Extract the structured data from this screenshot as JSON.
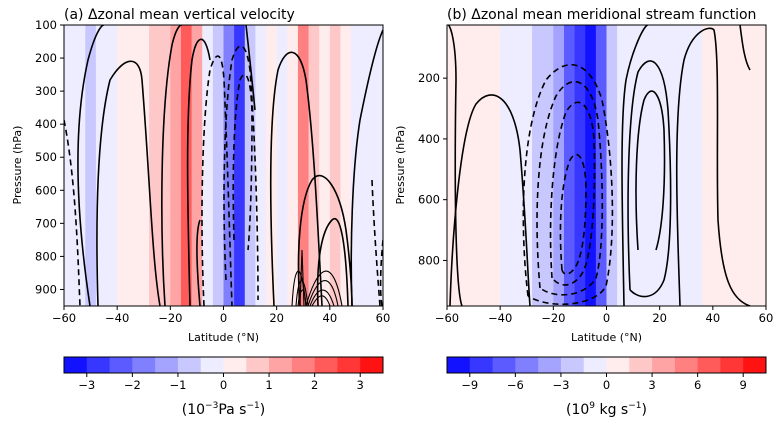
{
  "chart_data": [
    {
      "type": "heatmap",
      "title": "(a) Δzonal mean vertical velocity",
      "xlabel": "Latitude (°N)",
      "ylabel": "Pressure (hPa)",
      "xlim": [
        -60,
        60
      ],
      "ylim": [
        100,
        950
      ],
      "y_inverted": true,
      "xticks": [
        -60,
        -40,
        -20,
        0,
        20,
        40,
        60
      ],
      "yticks": [
        100,
        200,
        300,
        400,
        500,
        600,
        700,
        800,
        900
      ],
      "bands": [
        {
          "lat": -58,
          "value": -0.1
        },
        {
          "lat": -54,
          "value": -0.5
        },
        {
          "lat": -50,
          "value": -0.7
        },
        {
          "lat": -46,
          "value": -0.5
        },
        {
          "lat": -42,
          "value": -0.2
        },
        {
          "lat": -38,
          "value": 0.1
        },
        {
          "lat": -34,
          "value": 0.2
        },
        {
          "lat": -30,
          "value": 0.3
        },
        {
          "lat": -26,
          "value": 0.6
        },
        {
          "lat": -22,
          "value": 0.9
        },
        {
          "lat": -18,
          "value": 1.4
        },
        {
          "lat": -14,
          "value": 2.4
        },
        {
          "lat": -10,
          "value": 1.0
        },
        {
          "lat": -6,
          "value": -0.4
        },
        {
          "lat": -2,
          "value": -0.8
        },
        {
          "lat": 2,
          "value": -1.8
        },
        {
          "lat": 6,
          "value": -2.6
        },
        {
          "lat": 10,
          "value": -0.8
        },
        {
          "lat": 14,
          "value": -0.2
        },
        {
          "lat": 18,
          "value": 0.1
        },
        {
          "lat": 22,
          "value": -0.1
        },
        {
          "lat": 26,
          "value": 0.3
        },
        {
          "lat": 30,
          "value": 1.6
        },
        {
          "lat": 34,
          "value": 0.9
        },
        {
          "lat": 38,
          "value": 0.4
        },
        {
          "lat": 42,
          "value": 0.8
        },
        {
          "lat": 46,
          "value": 0.2
        },
        {
          "lat": 50,
          "value": -0.1
        },
        {
          "lat": 54,
          "value": -0.3
        },
        {
          "lat": 58,
          "value": -0.2
        }
      ],
      "colorbar": {
        "ticks": [
          -3,
          -2,
          -1,
          0,
          1,
          2,
          3
        ],
        "range": [
          -3.5,
          3.5
        ],
        "levels": 14,
        "label_base": "(10",
        "label_exp": "−3",
        "label_mid": "Pa s",
        "label_exp2": "−1",
        "label_end": ")"
      }
    },
    {
      "type": "heatmap",
      "title": "(b) Δzonal mean meridional stream function",
      "xlabel": "Latitude (°N)",
      "ylabel": "Pressure (hPa)",
      "xlim": [
        -60,
        60
      ],
      "ylim": [
        25,
        950
      ],
      "y_inverted": true,
      "xticks": [
        -60,
        -40,
        -20,
        0,
        20,
        40,
        60
      ],
      "yticks": [
        200,
        400,
        600,
        800
      ],
      "bands": [
        {
          "lat": -58,
          "value": 0.4
        },
        {
          "lat": -54,
          "value": 0.5
        },
        {
          "lat": -50,
          "value": 0.5
        },
        {
          "lat": -46,
          "value": 0.3
        },
        {
          "lat": -42,
          "value": 0.2
        },
        {
          "lat": -38,
          "value": -0.2
        },
        {
          "lat": -34,
          "value": -0.6
        },
        {
          "lat": -30,
          "value": -1.2
        },
        {
          "lat": -26,
          "value": -1.8
        },
        {
          "lat": -22,
          "value": -2.6
        },
        {
          "lat": -18,
          "value": -4.2
        },
        {
          "lat": -14,
          "value": -6.5
        },
        {
          "lat": -10,
          "value": -8.6
        },
        {
          "lat": -6,
          "value": -9.5
        },
        {
          "lat": -2,
          "value": -7.0
        },
        {
          "lat": 2,
          "value": -2.0
        },
        {
          "lat": 6,
          "value": -0.5
        },
        {
          "lat": 10,
          "value": -0.3
        },
        {
          "lat": 14,
          "value": -1.2
        },
        {
          "lat": 18,
          "value": -1.5
        },
        {
          "lat": 22,
          "value": -1.0
        },
        {
          "lat": 26,
          "value": -0.6
        },
        {
          "lat": 30,
          "value": -0.4
        },
        {
          "lat": 34,
          "value": -0.2
        },
        {
          "lat": 38,
          "value": 0.2
        },
        {
          "lat": 42,
          "value": 0.4
        },
        {
          "lat": 46,
          "value": 0.5
        },
        {
          "lat": 50,
          "value": 0.4
        },
        {
          "lat": 54,
          "value": 0.3
        },
        {
          "lat": 58,
          "value": 0.2
        }
      ],
      "colorbar": {
        "ticks": [
          -9,
          -6,
          -3,
          0,
          3,
          6,
          9
        ],
        "range": [
          -10.5,
          10.5
        ],
        "levels": 14,
        "label_base": "(10",
        "label_exp": "9",
        "label_mid": " kg s",
        "label_exp2": "−1",
        "label_end": ")"
      }
    }
  ]
}
